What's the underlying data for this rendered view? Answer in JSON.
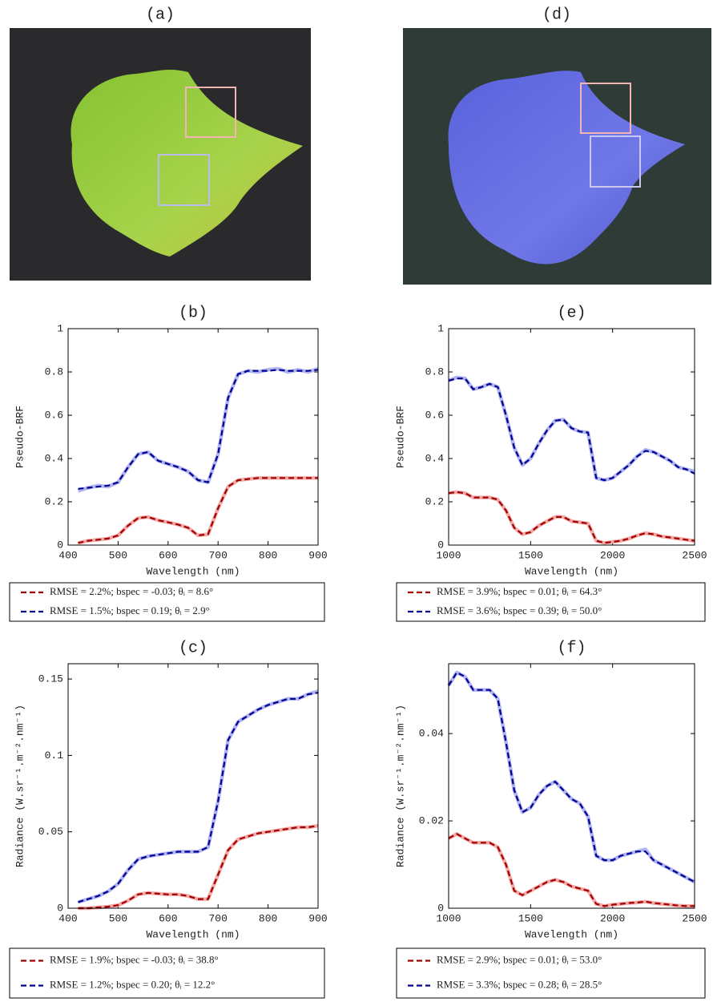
{
  "images": [
    {
      "title": "(a)"
    },
    {
      "title": "(d)"
    }
  ],
  "chart_data": [
    {
      "type": "line",
      "title": "(b)",
      "xlabel": "Wavelength (nm)",
      "ylabel": "Pseudo-BRF",
      "xlim": [
        400,
        900
      ],
      "ylim": [
        0,
        1
      ],
      "xticks": [
        400,
        500,
        600,
        700,
        800,
        900
      ],
      "yticks": [
        0,
        0.2,
        0.4,
        0.6,
        0.8,
        1
      ],
      "x": [
        420,
        440,
        460,
        480,
        500,
        520,
        540,
        560,
        580,
        600,
        620,
        640,
        660,
        680,
        700,
        720,
        740,
        760,
        780,
        800,
        820,
        840,
        860,
        880,
        900
      ],
      "series": [
        {
          "color": "#f4a9a9",
          "line_style": "solid",
          "values": [
            0.01,
            0.02,
            0.025,
            0.03,
            0.045,
            0.09,
            0.125,
            0.13,
            0.115,
            0.105,
            0.095,
            0.08,
            0.045,
            0.05,
            0.17,
            0.27,
            0.3,
            0.305,
            0.31,
            0.31,
            0.31,
            0.31,
            0.31,
            0.31,
            0.31
          ]
        },
        {
          "color": "#b0b4f0",
          "line_style": "solid",
          "values": [
            0.25,
            0.265,
            0.275,
            0.27,
            0.29,
            0.36,
            0.42,
            0.43,
            0.39,
            0.375,
            0.36,
            0.34,
            0.3,
            0.29,
            0.42,
            0.68,
            0.79,
            0.805,
            0.8,
            0.81,
            0.815,
            0.8,
            0.81,
            0.8,
            0.815
          ]
        },
        {
          "name": "RMSE = 2.2%; bspec = -0.03; θᵢ = 8.6°",
          "color": "#a00000",
          "line_style": "dashed",
          "values": [
            0.01,
            0.02,
            0.025,
            0.03,
            0.045,
            0.09,
            0.125,
            0.13,
            0.115,
            0.105,
            0.095,
            0.08,
            0.045,
            0.05,
            0.17,
            0.27,
            0.3,
            0.305,
            0.31,
            0.31,
            0.31,
            0.31,
            0.31,
            0.31,
            0.31
          ]
        },
        {
          "name": "RMSE = 1.5%; bspec = 0.19; θᵢ = 2.9°",
          "color": "#000090",
          "line_style": "dashed",
          "values": [
            0.26,
            0.265,
            0.27,
            0.275,
            0.29,
            0.36,
            0.42,
            0.43,
            0.39,
            0.375,
            0.36,
            0.34,
            0.3,
            0.29,
            0.42,
            0.68,
            0.79,
            0.805,
            0.805,
            0.805,
            0.81,
            0.805,
            0.805,
            0.805,
            0.81
          ]
        }
      ]
    },
    {
      "type": "line",
      "title": "(c)",
      "xlabel": "Wavelength (nm)",
      "ylabel": "Radiance (W.sr⁻¹.m⁻².nm⁻¹)",
      "xlim": [
        400,
        900
      ],
      "ylim": [
        0,
        0.16
      ],
      "xticks": [
        400,
        500,
        600,
        700,
        800,
        900
      ],
      "yticks": [
        0,
        0.05,
        0.1,
        0.15
      ],
      "x": [
        420,
        440,
        460,
        480,
        500,
        520,
        540,
        560,
        580,
        600,
        620,
        640,
        660,
        680,
        700,
        720,
        740,
        760,
        780,
        800,
        820,
        840,
        860,
        880,
        900
      ],
      "series": [
        {
          "color": "#f4a9a9",
          "line_style": "solid",
          "values": [
            0,
            0,
            0.0005,
            0.001,
            0.002,
            0.005,
            0.009,
            0.01,
            0.0095,
            0.009,
            0.009,
            0.008,
            0.006,
            0.006,
            0.022,
            0.038,
            0.045,
            0.047,
            0.049,
            0.05,
            0.051,
            0.052,
            0.053,
            0.053,
            0.054
          ]
        },
        {
          "color": "#b0b4f0",
          "line_style": "solid",
          "values": [
            0.004,
            0.006,
            0.008,
            0.011,
            0.016,
            0.025,
            0.032,
            0.034,
            0.035,
            0.036,
            0.037,
            0.037,
            0.037,
            0.04,
            0.07,
            0.11,
            0.122,
            0.126,
            0.13,
            0.133,
            0.135,
            0.137,
            0.137,
            0.14,
            0.142
          ]
        },
        {
          "name": "RMSE = 1.9%; bspec = -0.03; θᵢ = 38.8°",
          "color": "#a00000",
          "line_style": "dashed",
          "values": [
            0,
            0,
            0.0005,
            0.001,
            0.002,
            0.005,
            0.009,
            0.01,
            0.0095,
            0.009,
            0.009,
            0.008,
            0.006,
            0.006,
            0.022,
            0.038,
            0.045,
            0.047,
            0.049,
            0.05,
            0.051,
            0.052,
            0.053,
            0.053,
            0.054
          ]
        },
        {
          "name": "RMSE = 1.2%; bspec = 0.20; θᵢ = 12.2°",
          "color": "#000090",
          "line_style": "dashed",
          "values": [
            0.004,
            0.006,
            0.008,
            0.011,
            0.016,
            0.025,
            0.032,
            0.034,
            0.035,
            0.036,
            0.037,
            0.037,
            0.037,
            0.04,
            0.07,
            0.11,
            0.122,
            0.126,
            0.13,
            0.133,
            0.135,
            0.137,
            0.137,
            0.14,
            0.141
          ]
        }
      ]
    },
    {
      "type": "line",
      "title": "(e)",
      "xlabel": "Wavelength (nm)",
      "ylabel": "Pseudo-BRF",
      "xlim": [
        1000,
        2500
      ],
      "ylim": [
        0,
        1
      ],
      "xticks": [
        1000,
        1500,
        2000,
        2500
      ],
      "yticks": [
        0,
        0.2,
        0.4,
        0.6,
        0.8,
        1
      ],
      "x": [
        1000,
        1050,
        1100,
        1150,
        1200,
        1250,
        1300,
        1350,
        1400,
        1450,
        1500,
        1550,
        1600,
        1650,
        1700,
        1750,
        1800,
        1850,
        1900,
        1950,
        2000,
        2050,
        2100,
        2150,
        2200,
        2250,
        2300,
        2350,
        2400,
        2450,
        2500
      ],
      "series": [
        {
          "color": "#f4a9a9",
          "line_style": "solid",
          "values": [
            0.24,
            0.245,
            0.24,
            0.22,
            0.22,
            0.22,
            0.21,
            0.16,
            0.08,
            0.05,
            0.06,
            0.09,
            0.11,
            0.13,
            0.13,
            0.11,
            0.105,
            0.1,
            0.02,
            0.01,
            0.015,
            0.02,
            0.03,
            0.045,
            0.055,
            0.05,
            0.04,
            0.035,
            0.03,
            0.025,
            0.02
          ]
        },
        {
          "color": "#b0b4f0",
          "line_style": "solid",
          "values": [
            0.76,
            0.775,
            0.77,
            0.72,
            0.73,
            0.745,
            0.73,
            0.6,
            0.45,
            0.37,
            0.4,
            0.47,
            0.53,
            0.575,
            0.58,
            0.54,
            0.525,
            0.52,
            0.31,
            0.3,
            0.31,
            0.34,
            0.37,
            0.41,
            0.44,
            0.43,
            0.41,
            0.39,
            0.36,
            0.35,
            0.34
          ]
        },
        {
          "name": "RMSE = 3.9%; bspec = 0.01; θᵢ = 64.3°",
          "color": "#a00000",
          "line_style": "dashed",
          "values": [
            0.24,
            0.245,
            0.24,
            0.22,
            0.22,
            0.22,
            0.21,
            0.16,
            0.08,
            0.05,
            0.06,
            0.09,
            0.11,
            0.13,
            0.13,
            0.11,
            0.105,
            0.1,
            0.02,
            0.01,
            0.015,
            0.02,
            0.03,
            0.045,
            0.055,
            0.05,
            0.04,
            0.035,
            0.03,
            0.025,
            0.02
          ]
        },
        {
          "name": "RMSE = 3.6%; bspec = 0.39; θᵢ = 50.0°",
          "color": "#000090",
          "line_style": "dashed",
          "values": [
            0.76,
            0.77,
            0.77,
            0.72,
            0.73,
            0.745,
            0.73,
            0.6,
            0.45,
            0.37,
            0.4,
            0.47,
            0.53,
            0.575,
            0.58,
            0.54,
            0.525,
            0.52,
            0.31,
            0.3,
            0.31,
            0.34,
            0.37,
            0.41,
            0.435,
            0.43,
            0.41,
            0.39,
            0.36,
            0.35,
            0.33
          ]
        }
      ]
    },
    {
      "type": "line",
      "title": "(f)",
      "xlabel": "Wavelength (nm)",
      "ylabel": "Radiance (W.sr⁻¹.m⁻².nm⁻¹)",
      "xlim": [
        1000,
        2500
      ],
      "ylim": [
        0,
        0.056
      ],
      "xticks": [
        1000,
        1500,
        2000,
        2500
      ],
      "yticks": [
        0,
        0.02,
        0.04
      ],
      "x": [
        1000,
        1050,
        1100,
        1150,
        1200,
        1250,
        1300,
        1350,
        1400,
        1450,
        1500,
        1550,
        1600,
        1650,
        1700,
        1750,
        1800,
        1850,
        1900,
        1950,
        2000,
        2050,
        2100,
        2150,
        2200,
        2250,
        2300,
        2350,
        2400,
        2450,
        2500
      ],
      "series": [
        {
          "color": "#f4a9a9",
          "line_style": "solid",
          "values": [
            0.016,
            0.017,
            0.016,
            0.015,
            0.015,
            0.015,
            0.014,
            0.01,
            0.004,
            0.003,
            0.004,
            0.005,
            0.006,
            0.0065,
            0.006,
            0.005,
            0.0045,
            0.004,
            0.001,
            0.0005,
            0.0008,
            0.001,
            0.0012,
            0.0013,
            0.0015,
            0.0012,
            0.001,
            0.0008,
            0.0006,
            0.0005,
            0.0005
          ]
        },
        {
          "color": "#b0b4f0",
          "line_style": "solid",
          "values": [
            0.051,
            0.054,
            0.053,
            0.05,
            0.05,
            0.05,
            0.048,
            0.038,
            0.027,
            0.022,
            0.023,
            0.026,
            0.028,
            0.029,
            0.027,
            0.025,
            0.024,
            0.021,
            0.012,
            0.011,
            0.011,
            0.012,
            0.0125,
            0.013,
            0.0135,
            0.011,
            0.01,
            0.009,
            0.008,
            0.007,
            0.006
          ]
        },
        {
          "name": "RMSE = 2.9%; bspec = 0.01; θᵢ = 53.0°",
          "color": "#a00000",
          "line_style": "dashed",
          "values": [
            0.016,
            0.017,
            0.016,
            0.015,
            0.015,
            0.015,
            0.014,
            0.01,
            0.004,
            0.003,
            0.004,
            0.005,
            0.006,
            0.0065,
            0.006,
            0.005,
            0.0045,
            0.004,
            0.001,
            0.0005,
            0.0008,
            0.001,
            0.0012,
            0.0013,
            0.0015,
            0.0012,
            0.001,
            0.0008,
            0.0006,
            0.0005,
            0.0005
          ]
        },
        {
          "name": "RMSE = 3.3%; bspec = 0.28; θᵢ = 28.5°",
          "color": "#000090",
          "line_style": "dashed",
          "values": [
            0.051,
            0.054,
            0.053,
            0.05,
            0.05,
            0.05,
            0.048,
            0.038,
            0.027,
            0.022,
            0.023,
            0.026,
            0.028,
            0.029,
            0.027,
            0.025,
            0.024,
            0.021,
            0.012,
            0.011,
            0.011,
            0.012,
            0.0125,
            0.013,
            0.013,
            0.011,
            0.01,
            0.009,
            0.008,
            0.007,
            0.006
          ]
        }
      ]
    }
  ]
}
